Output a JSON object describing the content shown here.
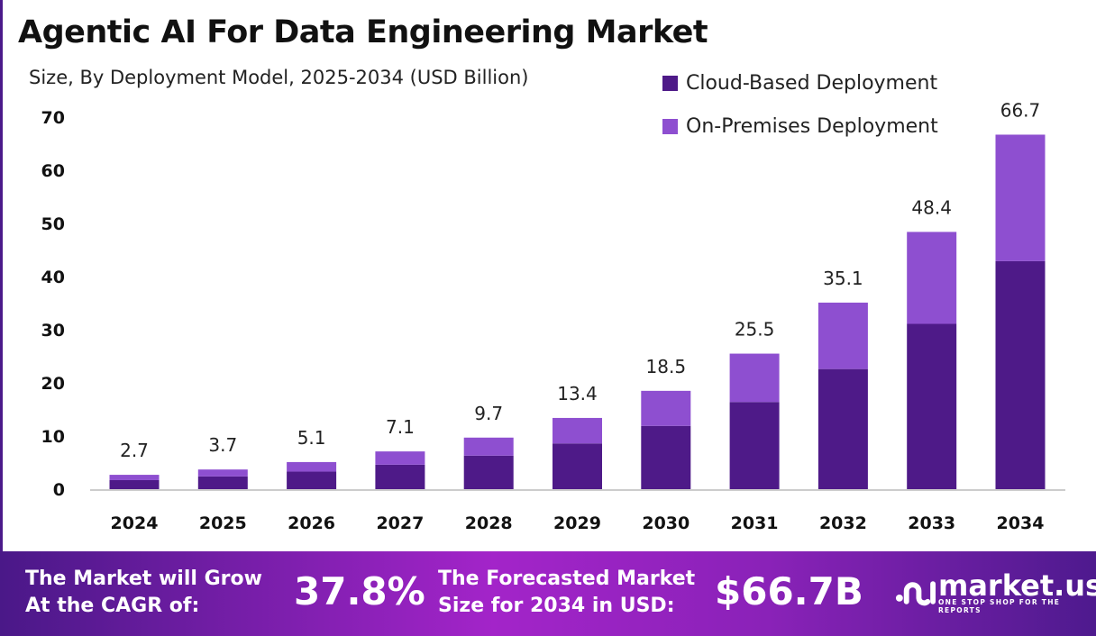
{
  "chart_data": {
    "type": "bar",
    "stacked": true,
    "title": "Agentic AI For Data Engineering Market",
    "subtitle": "Size, By Deployment Model, 2025-2034 (USD Billion)",
    "categories": [
      "2024",
      "2025",
      "2026",
      "2027",
      "2028",
      "2029",
      "2030",
      "2031",
      "2032",
      "2033",
      "2034"
    ],
    "series": [
      {
        "name": "Cloud-Based Deployment",
        "color": "#4e1a88",
        "values": [
          1.7,
          2.4,
          3.3,
          4.6,
          6.3,
          8.6,
          11.9,
          16.4,
          22.6,
          31.1,
          42.9
        ]
      },
      {
        "name": "On-Premises Deployment",
        "color": "#8e4fd0",
        "values": [
          1.0,
          1.3,
          1.8,
          2.5,
          3.4,
          4.8,
          6.6,
          9.1,
          12.5,
          17.3,
          23.8
        ]
      }
    ],
    "totals": [
      "2.7",
      "3.7",
      "5.1",
      "7.1",
      "9.7",
      "13.4",
      "18.5",
      "25.5",
      "35.1",
      "48.4",
      "66.7"
    ],
    "yticks": [
      "0",
      "10",
      "20",
      "30",
      "40",
      "50",
      "60",
      "70"
    ],
    "ylim": [
      0,
      70
    ],
    "grid": false,
    "legend": "top-right"
  },
  "footer": {
    "cagr_label_1": "The Market will Grow",
    "cagr_label_2": "At the CAGR of:",
    "cagr_value": "37.8%",
    "forecast_label_1": "The Forecasted Market",
    "forecast_label_2": "Size for 2034 in USD:",
    "forecast_value": "$66.7B",
    "logo_name": "market.us",
    "logo_tagline": "ONE STOP SHOP FOR THE REPORTS"
  }
}
